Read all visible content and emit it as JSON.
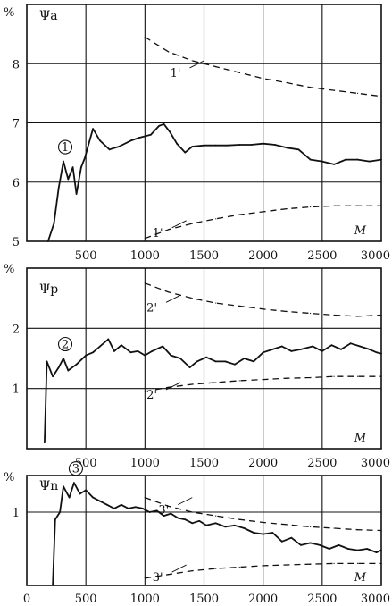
{
  "chart_data": [
    {
      "type": "line",
      "unit_label": "%",
      "ylabel": "Ψa",
      "xlabel": "M",
      "xlim": [
        0,
        3000
      ],
      "ylim": [
        5,
        9
      ],
      "x_ticks": [
        500,
        1000,
        1500,
        2000,
        2500,
        3000
      ],
      "x_tick_labels": [
        "500",
        "1000",
        "1500",
        "2000",
        "2500",
        "3000"
      ],
      "y_ticks": [
        5,
        6,
        7,
        8
      ],
      "y_tick_labels": [
        "5",
        "6",
        "7",
        "8"
      ],
      "grid": true,
      "series": [
        {
          "name": "1",
          "style": "solid",
          "x": [
            180,
            230,
            270,
            310,
            350,
            390,
            420,
            460,
            490,
            560,
            620,
            700,
            780,
            880,
            950,
            1050,
            1120,
            1160,
            1210,
            1270,
            1340,
            1400,
            1500,
            1600,
            1700,
            1800,
            1900,
            2000,
            2100,
            2200,
            2300,
            2400,
            2500,
            2600,
            2700,
            2800,
            2900,
            3000
          ],
          "y": [
            5.0,
            5.3,
            5.9,
            6.35,
            6.05,
            6.25,
            5.8,
            6.25,
            6.4,
            6.9,
            6.7,
            6.55,
            6.6,
            6.7,
            6.75,
            6.8,
            6.95,
            6.98,
            6.85,
            6.65,
            6.5,
            6.6,
            6.62,
            6.62,
            6.62,
            6.63,
            6.63,
            6.65,
            6.63,
            6.58,
            6.55,
            6.38,
            6.35,
            6.3,
            6.38,
            6.38,
            6.35,
            6.38
          ]
        },
        {
          "name": "1'",
          "style": "dashed",
          "x": [
            1000,
            1200,
            1400,
            1600,
            1800,
            2000,
            2200,
            2400,
            2600,
            2800,
            3000
          ],
          "y": [
            8.45,
            8.2,
            8.05,
            7.95,
            7.85,
            7.75,
            7.68,
            7.6,
            7.55,
            7.5,
            7.45
          ]
        },
        {
          "name": "1'",
          "style": "dashed",
          "x": [
            1000,
            1200,
            1400,
            1600,
            1800,
            2000,
            2200,
            2400,
            2600,
            2800,
            3000
          ],
          "y": [
            5.05,
            5.2,
            5.3,
            5.38,
            5.45,
            5.5,
            5.55,
            5.58,
            5.6,
            5.6,
            5.6
          ]
        }
      ],
      "annotations": [
        {
          "text": "1",
          "circled": true,
          "at": [
            310,
            6.35
          ]
        },
        {
          "text": "1'",
          "at": [
            1500,
            8.05
          ]
        },
        {
          "text": "1'",
          "at": [
            1350,
            5.35
          ]
        }
      ]
    },
    {
      "type": "line",
      "unit_label": "%",
      "ylabel": "Ψp",
      "xlabel": "M",
      "xlim": [
        0,
        3000
      ],
      "ylim": [
        0,
        3
      ],
      "x_ticks": [
        500,
        1000,
        1500,
        2000,
        2500,
        3000
      ],
      "x_tick_labels": [
        "500",
        "1000",
        "1500",
        "2000",
        "2500",
        "3000"
      ],
      "y_ticks": [
        1,
        2
      ],
      "y_tick_labels": [
        "1",
        "2"
      ],
      "grid": true,
      "series": [
        {
          "name": "2",
          "style": "solid",
          "x": [
            150,
            170,
            220,
            270,
            310,
            350,
            420,
            500,
            560,
            620,
            690,
            740,
            800,
            880,
            940,
            1000,
            1060,
            1150,
            1220,
            1300,
            1380,
            1440,
            1520,
            1600,
            1680,
            1760,
            1840,
            1920,
            2000,
            2080,
            2160,
            2240,
            2320,
            2420,
            2500,
            2580,
            2660,
            2740,
            2820,
            2900,
            2960,
            3000
          ],
          "y": [
            0.1,
            1.45,
            1.2,
            1.35,
            1.5,
            1.3,
            1.4,
            1.55,
            1.6,
            1.7,
            1.82,
            1.62,
            1.72,
            1.6,
            1.62,
            1.55,
            1.62,
            1.7,
            1.55,
            1.5,
            1.35,
            1.45,
            1.52,
            1.45,
            1.45,
            1.4,
            1.5,
            1.45,
            1.6,
            1.65,
            1.7,
            1.62,
            1.65,
            1.7,
            1.62,
            1.72,
            1.65,
            1.75,
            1.7,
            1.65,
            1.6,
            1.58
          ]
        },
        {
          "name": "2'",
          "style": "dashed",
          "x": [
            1000,
            1200,
            1400,
            1600,
            1800,
            2000,
            2200,
            2400,
            2600,
            2800,
            3000
          ],
          "y": [
            2.75,
            2.6,
            2.5,
            2.42,
            2.37,
            2.32,
            2.28,
            2.25,
            2.22,
            2.2,
            2.22
          ]
        },
        {
          "name": "2'",
          "style": "dashed",
          "x": [
            1000,
            1200,
            1400,
            1600,
            1800,
            2000,
            2200,
            2400,
            2600,
            2800,
            3000
          ],
          "y": [
            0.95,
            1.02,
            1.07,
            1.1,
            1.13,
            1.15,
            1.17,
            1.18,
            1.2,
            1.2,
            1.2
          ]
        }
      ],
      "annotations": [
        {
          "text": "2",
          "circled": true,
          "at": [
            310,
            1.5
          ]
        },
        {
          "text": "2'",
          "at": [
            1300,
            2.55
          ]
        },
        {
          "text": "2'",
          "at": [
            1300,
            1.1
          ]
        }
      ]
    },
    {
      "type": "line",
      "unit_label": "%",
      "ylabel": "Ψn",
      "xlabel": "M",
      "xlim": [
        0,
        3000
      ],
      "ylim": [
        0,
        1.5
      ],
      "x_ticks": [
        0,
        500,
        1000,
        1500,
        2000,
        2500,
        3000
      ],
      "x_tick_labels": [
        "0",
        "500",
        "1000",
        "1500",
        "2000",
        "2500",
        "3000"
      ],
      "y_ticks": [
        1
      ],
      "y_tick_labels": [
        "1"
      ],
      "grid": true,
      "series": [
        {
          "name": "3",
          "style": "solid",
          "x": [
            220,
            240,
            280,
            310,
            360,
            400,
            450,
            500,
            560,
            620,
            680,
            740,
            800,
            860,
            920,
            980,
            1040,
            1100,
            1160,
            1220,
            1280,
            1340,
            1400,
            1460,
            1520,
            1600,
            1680,
            1760,
            1840,
            1920,
            2000,
            2080,
            2160,
            2240,
            2320,
            2400,
            2480,
            2560,
            2640,
            2720,
            2800,
            2880,
            2960,
            3000
          ],
          "y": [
            0.0,
            0.9,
            1.0,
            1.35,
            1.2,
            1.4,
            1.25,
            1.3,
            1.2,
            1.15,
            1.1,
            1.05,
            1.1,
            1.05,
            1.07,
            1.05,
            1.0,
            1.02,
            0.95,
            0.98,
            0.92,
            0.9,
            0.85,
            0.88,
            0.82,
            0.85,
            0.8,
            0.82,
            0.78,
            0.72,
            0.7,
            0.72,
            0.6,
            0.65,
            0.55,
            0.58,
            0.55,
            0.5,
            0.55,
            0.5,
            0.48,
            0.5,
            0.45,
            0.48
          ]
        },
        {
          "name": "3'",
          "style": "dashed",
          "x": [
            1000,
            1200,
            1400,
            1600,
            1800,
            2000,
            2200,
            2400,
            2600,
            2800,
            3000
          ],
          "y": [
            1.2,
            1.08,
            1.0,
            0.95,
            0.9,
            0.86,
            0.83,
            0.8,
            0.78,
            0.76,
            0.75
          ]
        },
        {
          "name": "3'",
          "style": "dashed",
          "x": [
            1000,
            1200,
            1400,
            1600,
            1800,
            2000,
            2200,
            2400,
            2600,
            2800,
            3000
          ],
          "y": [
            0.1,
            0.15,
            0.2,
            0.23,
            0.25,
            0.27,
            0.28,
            0.29,
            0.3,
            0.3,
            0.3
          ]
        }
      ],
      "annotations": [
        {
          "text": "3",
          "circled": true,
          "at": [
            400,
            1.4
          ]
        },
        {
          "text": "3'",
          "at": [
            1400,
            1.2
          ]
        },
        {
          "text": "3'",
          "at": [
            1350,
            0.28
          ]
        }
      ]
    }
  ]
}
